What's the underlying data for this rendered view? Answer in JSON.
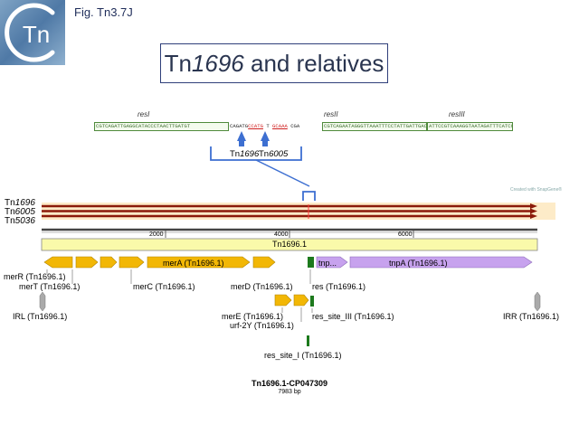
{
  "header": {
    "logo_text": "Tn",
    "fig_label": "Fig. Tn3.7J",
    "title_main": "Tn",
    "title_italic": "1696",
    "title_rest": " and relatives"
  },
  "sequence": {
    "res_labels": [
      "resI",
      "resII",
      "resIII"
    ],
    "seg1": "CGTCAGATTGAGGCATACCCTAACTTGATGT",
    "seg2": "CAGATG",
    "seg2_red1": "CCATG",
    "seg2_mid": "T",
    "seg2_red2": "GCAAA",
    "seg2_end": "CGA",
    "seg3": "CGTCAGAATAGGGTTAAATTTCCTATTGATTGACAT",
    "seg4": "ATTCCGTCAAAGGTAATAGATTTCATCCTGACA",
    "arrow_labels": [
      {
        "pre": "Tn",
        "it": "1696"
      },
      {
        "pre": "Tn",
        "it": "6005"
      }
    ]
  },
  "tn_names": [
    {
      "pre": "Tn",
      "it": "1696"
    },
    {
      "pre": "Tn",
      "it": "6005"
    },
    {
      "pre": "Tn",
      "it": "5036"
    }
  ],
  "watermark": "Created with SnapGene®",
  "map": {
    "ticks": [
      "2000",
      "4000",
      "6000"
    ],
    "feature_label": "Tn1696.1",
    "features": {
      "merA": "merA (Tn1696.1)",
      "tnp_short": "tnp...",
      "tnpA": "tnpA (Tn1696.1)",
      "merR": "merR (Tn1696.1)",
      "merT": "merT (Tn1696.1)",
      "merC": "merC (Tn1696.1)",
      "merD": "merD (Tn1696.1)",
      "res": "res (Tn1696.1)",
      "IRL": "IRL (Tn1696.1)",
      "merE": "merE (Tn1696.1)",
      "urf2Y": "urf-2Y (Tn1696.1)",
      "res_site_III": "res_site_III (Tn1696.1)",
      "IRR": "IRR (Tn1696.1)",
      "res_site_I": "res_site_I (Tn1696.1)"
    },
    "name": "Tn1696.1-CP047309",
    "length": "7983 bp"
  },
  "colors": {
    "gene_yellow": "#f2b705",
    "tnp_purple": "#c7a2ee",
    "res_green": "#1d7a1d",
    "track_red": "#8b1a0a",
    "track_bg": "#fdebc8",
    "feature_bar": "#fafaaa",
    "title_border": "#2f3f7a",
    "arrow_blue": "#3d6fd1"
  }
}
